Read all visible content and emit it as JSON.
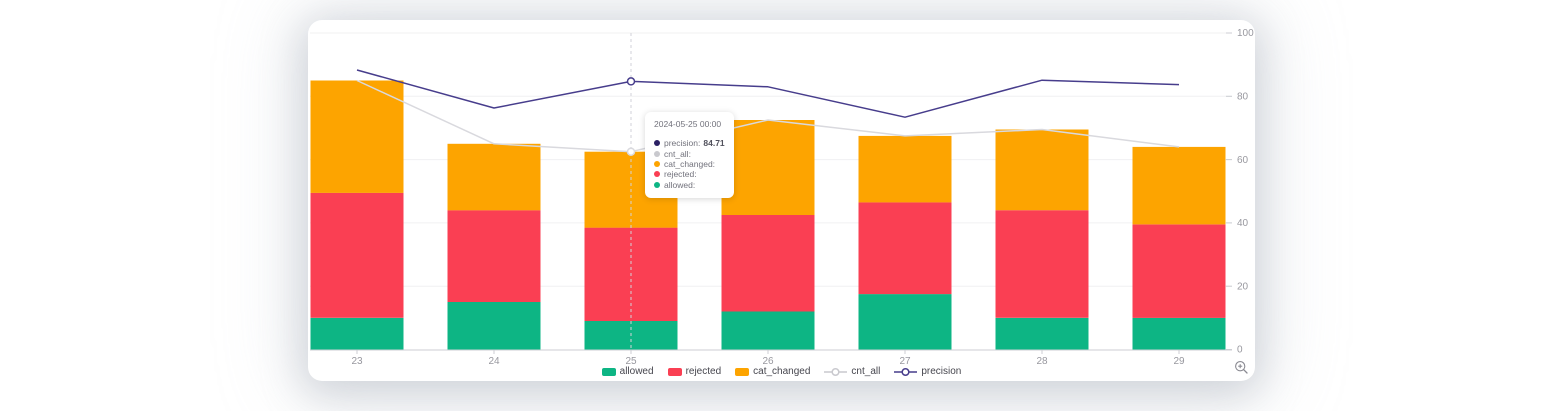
{
  "chart_data": {
    "type": "bar",
    "title": "",
    "categories": [
      "23",
      "24",
      "25",
      "26",
      "27",
      "28",
      "29"
    ],
    "series": [
      {
        "name": "allowed",
        "type": "bar",
        "stack": "total",
        "color": "#0db584",
        "values": [
          10,
          15,
          9,
          12,
          17.5,
          10,
          10
        ]
      },
      {
        "name": "rejected",
        "type": "bar",
        "stack": "total",
        "color": "#fa3f53",
        "values": [
          39.5,
          29,
          29.5,
          30.5,
          29,
          34,
          29.5
        ]
      },
      {
        "name": "cat_changed",
        "type": "bar",
        "stack": "total",
        "color": "#fda400",
        "values": [
          35.5,
          21,
          24,
          30,
          21,
          25.5,
          24.5
        ]
      },
      {
        "name": "cnt_all",
        "type": "line",
        "color": "#d9d9de",
        "values": [
          85,
          65,
          62.5,
          72.5,
          67.5,
          69.5,
          64
        ]
      },
      {
        "name": "precision",
        "type": "line",
        "color": "#473d8c",
        "values": [
          88.3,
          76.3,
          84.71,
          83,
          73.4,
          85.1,
          83.7
        ]
      }
    ],
    "ylim": [
      0,
      100
    ],
    "y_ticks": [
      "0",
      "20",
      "40",
      "60",
      "80",
      "100"
    ],
    "xlabel": "",
    "ylabel": "",
    "grid": "horizontal",
    "y_axis_side": "right",
    "legend_position": "bottom",
    "hover_index": 2
  },
  "tooltip": {
    "title": "2024-05-25 00:00",
    "rows": [
      {
        "label": "precision:",
        "value": "84.71",
        "dot_color": "#2b2064"
      },
      {
        "label": "cnt_all:",
        "value": "",
        "dot_color": "#c9c9ce"
      },
      {
        "label": "cat_changed:",
        "value": "",
        "dot_color": "#fda400"
      },
      {
        "label": "rejected:",
        "value": "",
        "dot_color": "#fa3f53"
      },
      {
        "label": "allowed:",
        "value": "",
        "dot_color": "#0db584"
      }
    ]
  },
  "legend": {
    "items": [
      {
        "label": "allowed",
        "color": "#0db584",
        "marker": "rect"
      },
      {
        "label": "rejected",
        "color": "#fa3f53",
        "marker": "rect"
      },
      {
        "label": "cat_changed",
        "color": "#fda400",
        "marker": "rect"
      },
      {
        "label": "cnt_all",
        "color": "#c9c9ce",
        "marker": "line"
      },
      {
        "label": "precision",
        "color": "#473d8c",
        "marker": "line"
      }
    ]
  },
  "toolbox": {
    "zoom_icon": "magnifier-plus-icon"
  },
  "colors": {
    "axis_text": "#98989f",
    "grid_line": "#f0f0f2",
    "axis_line": "#ccced3",
    "pointer_line": "#d2d2d8",
    "card_bg": "#ffffff",
    "page_bg": "#ffffff"
  }
}
